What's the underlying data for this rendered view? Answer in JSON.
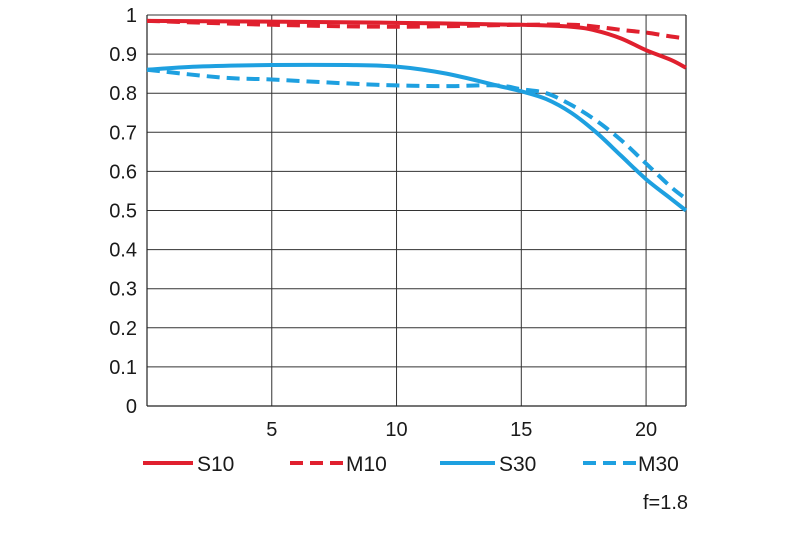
{
  "chart_data": {
    "type": "line",
    "title": "",
    "xlabel": "",
    "ylabel": "",
    "xlim": [
      0,
      21.6
    ],
    "ylim": [
      0,
      1
    ],
    "xticks": [
      5,
      10,
      15,
      20
    ],
    "yticks": [
      0,
      0.1,
      0.2,
      0.3,
      0.4,
      0.5,
      0.6,
      0.7,
      0.8,
      0.9,
      1
    ],
    "ytick_labels": [
      "0",
      "0.1",
      "0.2",
      "0.3",
      "0.4",
      "0.5",
      "0.6",
      "0.7",
      "0.8",
      "0.9",
      "1"
    ],
    "grid": true,
    "legend_position": "bottom",
    "series": [
      {
        "name": "S10",
        "color": "#e0202e",
        "dash": "solid",
        "x": [
          0,
          5,
          10,
          15,
          17,
          18,
          19,
          20,
          21,
          21.6
        ],
        "y": [
          0.985,
          0.983,
          0.98,
          0.975,
          0.97,
          0.96,
          0.94,
          0.91,
          0.885,
          0.865
        ]
      },
      {
        "name": "M10",
        "color": "#e0202e",
        "dash": "dashed",
        "x": [
          0,
          5,
          10,
          15,
          17,
          18,
          19,
          20,
          21,
          21.6
        ],
        "y": [
          0.985,
          0.975,
          0.97,
          0.975,
          0.975,
          0.97,
          0.962,
          0.955,
          0.945,
          0.94
        ]
      },
      {
        "name": "S30",
        "color": "#1ea0e0",
        "dash": "solid",
        "x": [
          0,
          2,
          5,
          8,
          10,
          12,
          14,
          15,
          16,
          17,
          18,
          19,
          20,
          21,
          21.6
        ],
        "y": [
          0.86,
          0.868,
          0.872,
          0.872,
          0.868,
          0.85,
          0.82,
          0.805,
          0.785,
          0.75,
          0.7,
          0.64,
          0.58,
          0.53,
          0.5
        ]
      },
      {
        "name": "M30",
        "color": "#1ea0e0",
        "dash": "dashed",
        "x": [
          0,
          3,
          5,
          8,
          10,
          12,
          14,
          15,
          16,
          17,
          18,
          19,
          20,
          21,
          21.6
        ],
        "y": [
          0.86,
          0.84,
          0.835,
          0.825,
          0.82,
          0.818,
          0.82,
          0.81,
          0.8,
          0.77,
          0.73,
          0.68,
          0.62,
          0.56,
          0.53
        ]
      }
    ]
  },
  "aperture_label": "f=1.8"
}
